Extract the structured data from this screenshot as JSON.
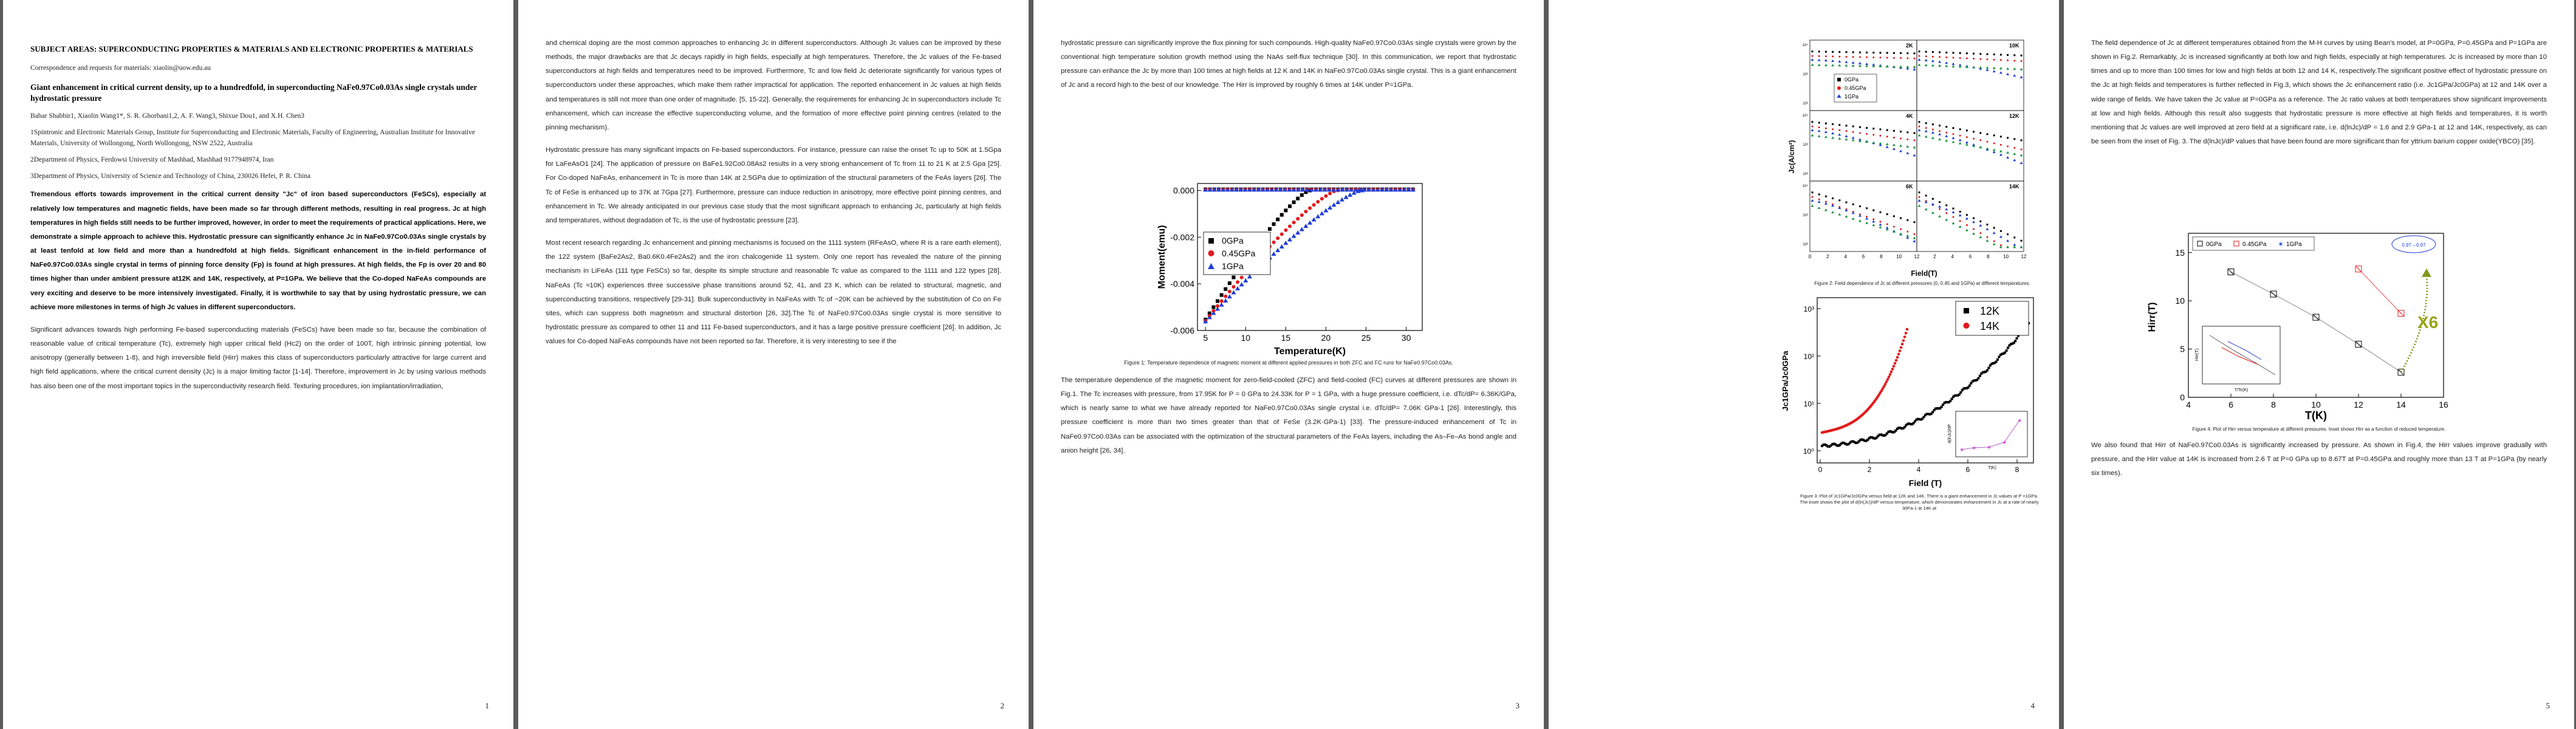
{
  "pages": [
    {
      "number": "1",
      "subject": "SUBJECT AREAS: SUPERCONDUCTING PROPERTIES & MATERIALS AND ELECTRONIC PROPERTIES & MATERIALS",
      "correspondence": "Correspondence and requests for materials: xiaolin@uow.edu.au",
      "title": "Giant enhancement in critical current density, up to a hundredfold, in superconducting NaFe0.97Co0.03As single crystals under hydrostatic pressure",
      "authors": "Babar Shabbir1, Xiaolin Wang1*, S. R. Ghorbani1,2, A. F. Wang3, Shixue Dou1, and X.H. Chen3",
      "affiliations": [
        "1Spintronic and Electronic Materials Group, Institute for Superconducting and Electronic Materials, Faculty of Engineering, Australian Institute for Innovative Materials, University of Wollongong, North Wollongong, NSW 2522, Australia",
        "2Department of Physics, Ferdowsi University of Mashhad, Mashhad 9177948974, Iran",
        "3Department of Physics, University of Science and Technology of China, 230026 Hefei, P. R. China"
      ],
      "abstract": "Tremendous efforts towards improvement in the critical current density \"Jc\" of iron based superconductors (FeSCs), especially at relatively low temperatures and magnetic fields, have been made so far through different methods, resulting in real progress. Jc at high temperatures in high fields still needs to be further improved, however, in order to meet the requirements of practical applications. Here, we demonstrate a simple approach to achieve this. Hydrostatic pressure can significantly enhance Jc in NaFe0.97Co0.03As single crystals by at least tenfold at low field and more than a hundredfold at high fields. Significant enhancement in the in-field performance of NaFe0.97Co0.03As single crystal in terms of pinning force density (Fp) is found at high pressures. At high fields, the Fp is over 20 and 80 times higher than under ambient pressure at12K and 14K, respectively, at P=1GPa. We believe that the Co-doped NaFeAs compounds are very exciting and deserve to be more intensively investigated. Finally, it is worthwhile to say that by using hydrostatic pressure, we can achieve more milestones in terms of high Jc values in different superconductors.",
      "body": "Significant advances towards high performing Fe-based superconducting materials (FeSCs) have been made so far, because the combination of reasonable value of critical temperature (Tc), extremely high upper critical field (Hc2) on the order of 100T, high intrinsic pinning potential, low anisotropy (generally between 1-8), and high irreversible field (Hirr) makes this class of superconductors particularly attractive for large current and high field applications, where the critical current density (Jc) is a major limiting factor [1-14]. Therefore, improvement in Jc by using various methods has also been one of the most important topics in the superconductivity research field. Texturing procedures, ion implantation/irradiation,"
    },
    {
      "number": "2",
      "paragraphs": [
        "and chemical doping are the most common approaches to enhancing Jc in different superconductors. Although Jc values can be improved by these methods, the major drawbacks are that Jc decays rapidly in high fields, especially at high temperatures. Therefore, the Jc values of the Fe-based superconductors at high fields and temperatures need to be improved. Furthermore, Tc and low field Jc deteriorate significantly for various types of superconductors under these approaches, which make them rather impractical for application. The reported enhancement in Jc values at high fields and temperatures is still not more than one order of magnitude. [5, 15-22]. Generally, the requirements for enhancing Jc in superconductors include Tc enhancement, which can increase the effective superconducting volume, and the formation of more effective point pinning centres (related to the pinning mechanism).",
        "Hydrostatic pressure has many significant impacts on Fe-based superconductors. For instance, pressure can raise the onset Tc up to 50K at 1.5Gpa for LaFeAsO1 [24]. The application of pressure on BaFe1.92Co0.08As2 results in a very strong enhancement of Tc from 11 to 21 K at 2.5 Gpa [25]. For Co-doped NaFeAs, enhancement in Tc is more than 14K at 2.5GPa due to optimization of the structural parameters of the FeAs layers [26]. The Tc of FeSe is enhanced up to 37K at 7Gpa [27]. Furthermore, pressure can induce reduction in anisotropy, more effective point pinning centres, and enhancement in Tc. We already anticipated in our previous case study that the most significant approach to enhancing Jc, particularly at high fields and temperatures, without degradation of Tc, is the use of hydrostatic pressure [23].",
        "Most recent research regarding Jc enhancement and pinning mechanisms is focused on the 1111 system (RFeAsO, where R is a rare earth element), the 122 system (BaFe2As2, Ba0.6K0.4Fe2As2) and the iron chalcogenide 11 system. Only one report has revealed the nature of the pinning mechanism in LiFeAs (111 type FeSCs) so far, despite its simple structure and reasonable Tc value as compared to the 1111 and 122 types [28]. NaFeAs (Tc ≈10K) experiences three successive phase transitions around 52, 41, and 23 K, which can be related to structural, magnetic, and superconducting transitions, respectively [29-31]. Bulk superconductivity in NaFeAs with Tc of ~20K can be achieved by the substitution of Co on Fe sites, which can suppress both magnetism and structural distortion [26, 32].The Tc of NaFe0.97Co0.03As single crystal is more sensitive to hydrostatic pressure as compared to other 11 and 111 Fe-based superconductors, and it has a large positive pressure coefficient [26]. In addition, Jc values for Co-doped NaFeAs compounds have not been reported so far. Therefore, it is very interesting to see if the"
      ]
    },
    {
      "number": "3",
      "paragraphs_top": [
        "hydrostatic pressure can significantly improve the flux pinning for such compounds. High-quality NaFe0.97Co0.03As single crystals were grown by the conventional high temperature solution growth method using the NaAs self-flux technique [30]. In this communication, we report that hydrostatic pressure can enhance the Jc by more than 100 times at high fields at 12 K and 14K in NaFe0.97Co0.03As single crystal. This is a giant enhancement of Jc and a record high to the best of our knowledge. The Hirr is improved by roughly 6 times at 14K under P=1GPa."
      ],
      "figure_caption": "Figure 1: Temperature dependence of magnetic moment at different applied pressures in both ZFC and FC runs for NaFe0.97Co0.03As.",
      "paragraphs_bottom": [
        "The temperature dependence of the magnetic moment for zero-field-cooled (ZFC) and field-cooled (FC) curves at different pressures are shown in Fig.1. The Tc increases with pressure, from 17.95K for P = 0 GPa to 24.33K for P = 1 GPa, with a huge pressure coefficient, i.e. dTc/dP= 6.36K/GPa, which is nearly same to what we have already reported for NaFe0.97Co0.03As single crystal i.e. dTc/dP= 7.06K GPa-1 [26]. Interestingly, this pressure coefficient is more than two times greater than that of FeSe (3.2K·GPa-1) [33]. The pressure-induced enhancement of Tc in NaFe0.97Co0.03As can be associated with the optimization of the structural parameters of the FeAs layers, including the As–Fe–As bond angle and anion height [26, 34]."
      ]
    },
    {
      "number": "4",
      "fig2_caption": "Figure 2: Field dependence of Jc at different pressures (0, 0.45 and 1GPa) at different temperatures.",
      "fig3_caption": "Figure 3: Plot of Jc1GPa/Jc0GPa versus field at 12K and 14K. There is a giant enhancement in Jc values at P =1GPa. The inset shows the plot of d(ln(Jc))/dP versus temperature, which demonstrates enhancement in Jc at a rate of nearly 30Pa-1 at 14K at"
    },
    {
      "number": "5",
      "paragraphs_top": [
        "The field dependence of Jc at different temperatures obtained from the M-H curves by using Bean's model, at P=0GPa, P=0.45GPa and P=1GPa are shown in Fig.2. Remarkably, Jc is increased significantly at both low and high fields, especially at high temperatures. Jc is increased by more than 10 times and up to more than 100 times for low and high fields at both 12 and 14 K, respectively.The significant positive effect of hydrostatic pressure on the Jc at high fields and temperatures is further reflected in Fig.3, which shows the Jc enhancement ratio (i.e. Jc1GPa/Jc0GPa) at 12 and 14K over a wide range of fields. We have taken the Jc value at P=0GPa as a reference. The Jc ratio values at both temperatures show significant improvements at low and high fields. Although this result also suggests that hydrostatic pressure is more effective at high fields and temperatures, it is worth mentioning that Jc values are well improved at zero field at a significant rate, i.e. d(lnJc)/dP = 1.6 and 2.9 GPa-1 at 12 and 14K, respectively, as can be seen from the inset of Fig. 3. The d(lnJc)/dP values that have been found are more significant than for yttrium barium copper oxide(YBCO) [35]."
      ],
      "fig4_caption": "Figure 4: Plot of Hirr versus temperature at different pressures. Inset shows Hirr as a function of reduced temperature.",
      "paragraphs_bottom": [
        "We also found that Hirr of NaFe0.97Co0.03As is significantly increased by pressure. As shown in Fig.4, the Hirr values improve gradually with pressure, and the Hirr value at 14K is increased from 2.6 T at P=0 GPa up to 8.67T at P=0.45GPa and roughly more than 13 T at P=1GPa (by nearly six times)."
      ]
    }
  ],
  "chart_data": [
    {
      "id": "fig1",
      "type": "scatter",
      "xlabel": "Temperature(K)",
      "ylabel": "Moment(emu)",
      "xlim": [
        4,
        32
      ],
      "ylim": [
        -0.006,
        0.0003
      ],
      "xticks": [
        "5",
        "10",
        "15",
        "20",
        "25",
        "30"
      ],
      "yticks": [
        "0.000",
        "-0.002",
        "-0.004",
        "-0.006"
      ],
      "legend_position": "top-left",
      "series": [
        {
          "name": "0GPa",
          "color": "#000000",
          "marker": "square",
          "tc": 17.9
        },
        {
          "name": "0.45GPa",
          "color": "#e31a1c",
          "marker": "circle",
          "tc": 21.3
        },
        {
          "name": "1GPa",
          "color": "#1f3dd6",
          "marker": "triangle",
          "tc": 24.3
        }
      ]
    },
    {
      "id": "fig2",
      "type": "line",
      "ylabel": "Jc(A/cm²)",
      "xlabel": "Field(T)",
      "panels": [
        "2K",
        "10K",
        "4K",
        "12K",
        "6K",
        "14K"
      ],
      "legend": [
        "0GPa",
        "0.45GPa",
        "1GPa"
      ],
      "xticks": [
        "0",
        "2",
        "4",
        "6",
        "8",
        "10",
        "12",
        "2",
        "4",
        "6",
        "8",
        "10",
        "12"
      ],
      "colors": [
        "#000000",
        "#e31a1c",
        "#1f3dd6",
        "#1a9641"
      ]
    },
    {
      "id": "fig3",
      "type": "scatter",
      "xlabel": "Field (T)",
      "ylabel": "Jc1GPa/Jc0GPa",
      "yticks": [
        "10⁰",
        "10¹",
        "10²",
        "10³"
      ],
      "xticks": [
        "0",
        "2",
        "4",
        "6",
        "8"
      ],
      "legend": [
        "12K",
        "14K"
      ],
      "inset_ylabel": "d(lnJc)/dP",
      "inset_xlabel": "T(K)"
    },
    {
      "id": "fig4",
      "type": "line",
      "xlabel": "T(K)",
      "ylabel": "Hirr(T)",
      "xlim": [
        4,
        16
      ],
      "xticks": [
        "4",
        "6",
        "8",
        "10",
        "12",
        "14",
        "16"
      ],
      "yticks": [
        "0",
        "5",
        "10",
        "15"
      ],
      "legend": [
        "0GPa",
        "0.45GPa",
        "1GPa"
      ],
      "annotation": "X6",
      "bubble": "0.97→0.97",
      "inset_xlabel": "T/Tc(K)",
      "inset_ylabel": "Hirr(T)"
    }
  ]
}
